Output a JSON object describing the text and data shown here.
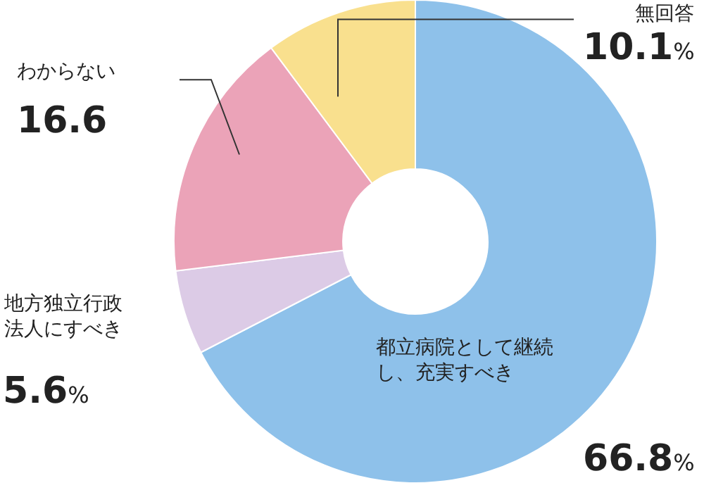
{
  "chart_data": {
    "type": "donut",
    "categories": [
      "都立病院として継続し、充実すべき",
      "地方独立行政法人にすべき",
      "わからない",
      "無回答"
    ],
    "values": [
      66.8,
      5.6,
      16.6,
      10.1
    ],
    "value_labels": [
      "66.8%",
      "5.6%",
      "16.6",
      "10.1%"
    ],
    "colors": [
      "#8ec1ea",
      "#dccbe6",
      "#eba3b8",
      "#f9e08e"
    ],
    "legend": false
  }
}
